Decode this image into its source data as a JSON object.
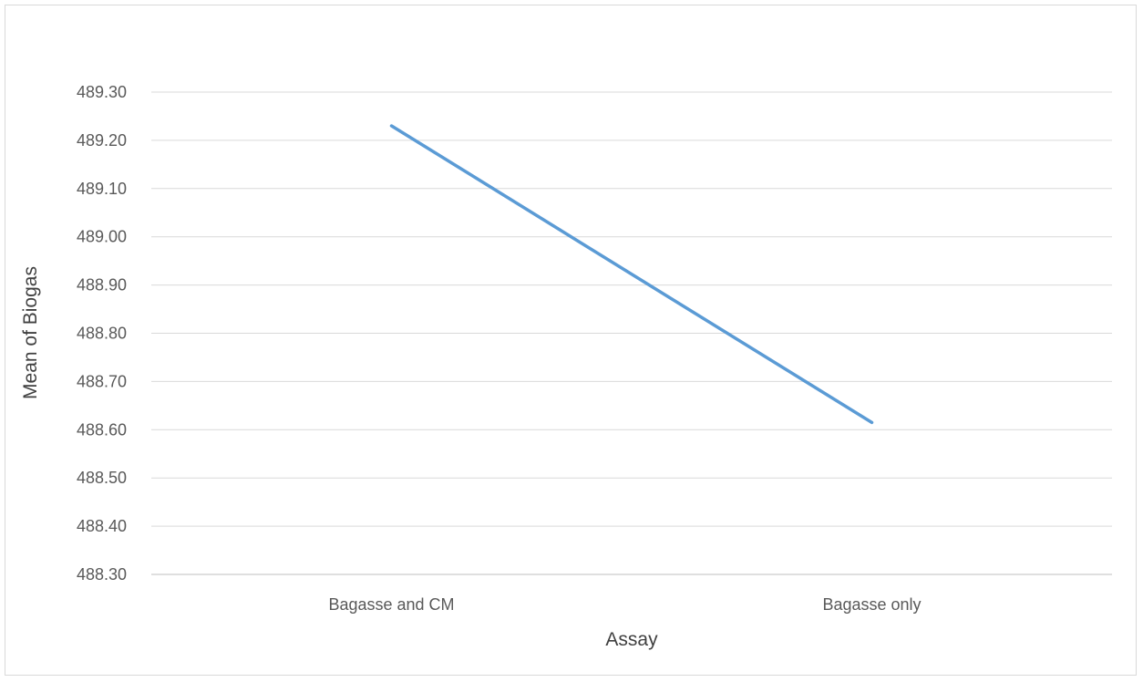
{
  "chart_data": {
    "type": "line",
    "categories": [
      "Bagasse and CM",
      "Bagasse only"
    ],
    "series": [
      {
        "values": [
          489.23,
          488.615
        ]
      }
    ],
    "xlabel": "Assay",
    "ylabel": "Mean of Biogas",
    "ylim": [
      488.3,
      489.3
    ],
    "y_ticks": [
      "488.30",
      "488.40",
      "488.50",
      "488.60",
      "488.70",
      "488.80",
      "488.90",
      "489.00",
      "489.10",
      "489.20",
      "489.30"
    ],
    "grid": true,
    "legend": "none",
    "colors": {
      "line": "#5b9bd5",
      "grid": "#d9d9d9",
      "axis": "#bfbfbf",
      "text": "#595959"
    }
  }
}
